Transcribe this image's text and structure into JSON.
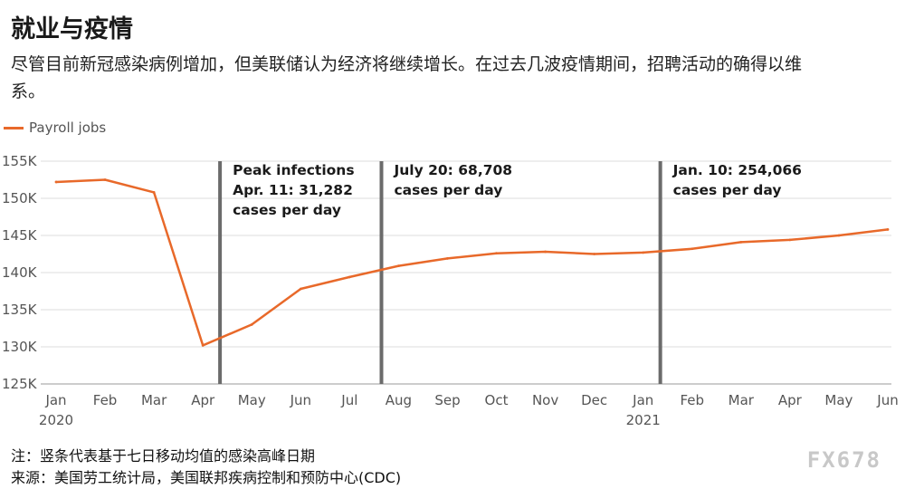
{
  "chart_data": {
    "type": "line",
    "title": "就业与疫情",
    "subtitle": "尽管目前新冠感染病例增加，但美联储认为经济将继续增长。在过去几波疫情期间，招聘活动的确得以维系。",
    "series": [
      {
        "name": "Payroll jobs",
        "color": "#e8692a",
        "values": [
          152.2,
          152.5,
          150.8,
          130.2,
          133.0,
          137.8,
          139.4,
          140.9,
          141.9,
          142.6,
          142.8,
          142.5,
          142.7,
          143.2,
          144.1,
          144.4,
          145.0,
          145.8
        ]
      }
    ],
    "categories": [
      "Jan",
      "Feb",
      "Mar",
      "Apr",
      "May",
      "Jun",
      "Jul",
      "Aug",
      "Sep",
      "Oct",
      "Nov",
      "Dec",
      "Jan",
      "Feb",
      "Mar",
      "Apr",
      "May",
      "Jun"
    ],
    "year_labels": [
      {
        "index": 0,
        "label": "2020"
      },
      {
        "index": 12,
        "label": "2021"
      }
    ],
    "ylim": [
      125,
      155
    ],
    "yticks": [
      {
        "value": 155,
        "label": "155K"
      },
      {
        "value": 150,
        "label": "150K"
      },
      {
        "value": 145,
        "label": "145K"
      },
      {
        "value": 140,
        "label": "140K"
      },
      {
        "value": 135,
        "label": "135K"
      },
      {
        "value": 130,
        "label": "130K"
      },
      {
        "value": 125,
        "label": "125K"
      }
    ],
    "grid": true,
    "legend_position": "top-left",
    "annotations": [
      {
        "x": 3.35,
        "lines": [
          "Peak infections",
          "Apr. 11: 31,282",
          "cases per day"
        ]
      },
      {
        "x": 6.65,
        "lines": [
          "July 20: 68,708",
          "cases per day"
        ]
      },
      {
        "x": 12.35,
        "lines": [
          "Jan. 10: 254,066",
          "cases per day"
        ]
      }
    ],
    "footnotes": [
      "注：竖条代表基于七日移动均值的感染高峰日期",
      "来源：美国劳工统计局，美国联邦疾病控制和预防中心(CDC)"
    ]
  },
  "watermark": "FX678"
}
